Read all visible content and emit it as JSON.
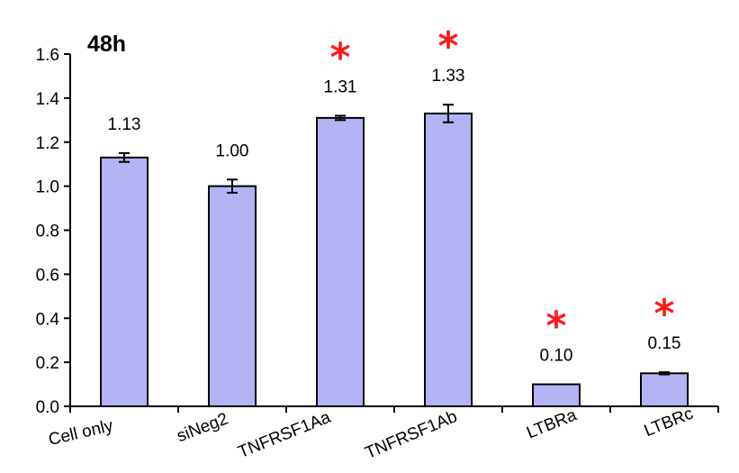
{
  "chart_data": {
    "type": "bar",
    "title": "48h",
    "xlabel": "",
    "ylabel": "",
    "ylim": [
      0,
      1.6
    ],
    "yticks": [
      "0.0",
      "0.2",
      "0.4",
      "0.6",
      "0.8",
      "1.0",
      "1.2",
      "1.4",
      "1.6"
    ],
    "categories": [
      "Cell only",
      "siNeg2",
      "TNFRSF1Aa",
      "TNFRSF1Ab",
      "LTBRa",
      "LTBRc"
    ],
    "values": [
      1.13,
      1.0,
      1.31,
      1.33,
      0.1,
      0.15
    ],
    "data_labels": [
      "1.13",
      "1.00",
      "1.31",
      "1.33",
      "0.10",
      "0.15"
    ],
    "errors": [
      0.02,
      0.03,
      0.01,
      0.04,
      0.0,
      0.005
    ],
    "significance_markers": [
      "",
      "",
      "*",
      "*",
      "*",
      "*"
    ],
    "grid": false,
    "legend": "none",
    "colors": {
      "bar_fill": "#b3b3f5",
      "bar_stroke": "#000000",
      "significance": "#ff1a1a",
      "axis": "#000000"
    }
  }
}
